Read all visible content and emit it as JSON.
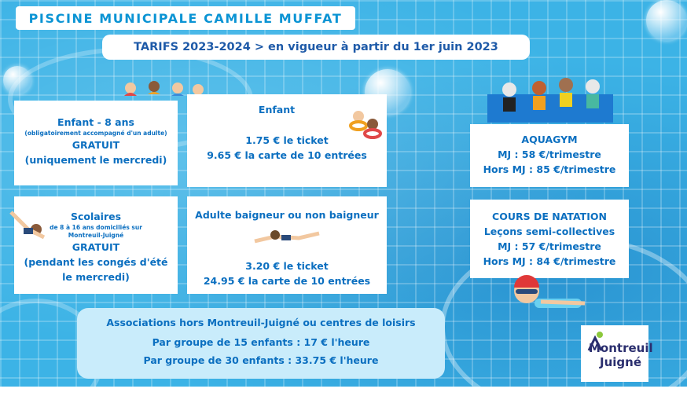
{
  "header": {
    "title": "PISCINE MUNICIPALE CAMILLE MUFFAT",
    "subtitle": "TARIFS 2023-2024 > en vigueur à partir du 1er juin 2023"
  },
  "cards": {
    "enfant8": {
      "title": "Enfant - 8 ans",
      "note": "(obligatoirement accompagné d'un adulte)",
      "price": "GRATUIT",
      "detail": "(uniquement le mercredi)"
    },
    "enfant": {
      "title": "Enfant",
      "ticket": "1.75 € le ticket",
      "carte": "9.65 € la carte de 10 entrées"
    },
    "scolaires": {
      "title": "Scolaires",
      "note1": "de 8 à 16 ans domiciliés sur",
      "note2": "Montreuil-Juigné",
      "price": "GRATUIT",
      "detail1": "(pendant les congés d'été",
      "detail2": "le mercredi)"
    },
    "adulte": {
      "title": "Adulte baigneur ou non baigneur",
      "ticket": "3.20 € le ticket",
      "carte": "24.95 € la carte de 10 entrées"
    },
    "aquagym": {
      "title": "AQUAGYM",
      "mj": "MJ : 58 €/trimestre",
      "hors": "Hors MJ : 85 €/trimestre"
    },
    "natation": {
      "title": "COURS DE NATATION",
      "sub": "Leçons semi-collectives",
      "mj": "MJ : 57 €/trimestre",
      "hors": "Hors MJ : 84 €/trimestre"
    }
  },
  "associations": {
    "title": "Associations hors Montreuil-Juigné ou centres de loisirs",
    "line1": "Par groupe de 15 enfants : 17 € l'heure",
    "line2": "Par groupe de 30 enfants : 33.75 € l'heure"
  },
  "logo": {
    "line1": "Montreuil",
    "line2": "Juigné"
  },
  "colors": {
    "pool": "#3cb3e6",
    "text": "#0b6fc0",
    "title": "#0b94d4",
    "subtitle": "#1e5aa8",
    "assoc_bg": "#c9ecfb"
  },
  "icons": [
    "swimming-children-illustration",
    "child-swimmer-illustration",
    "adult-swimmer-illustration",
    "aquagym-seniors-illustration",
    "boy-swimmer-illustration",
    "bubble-icon"
  ]
}
